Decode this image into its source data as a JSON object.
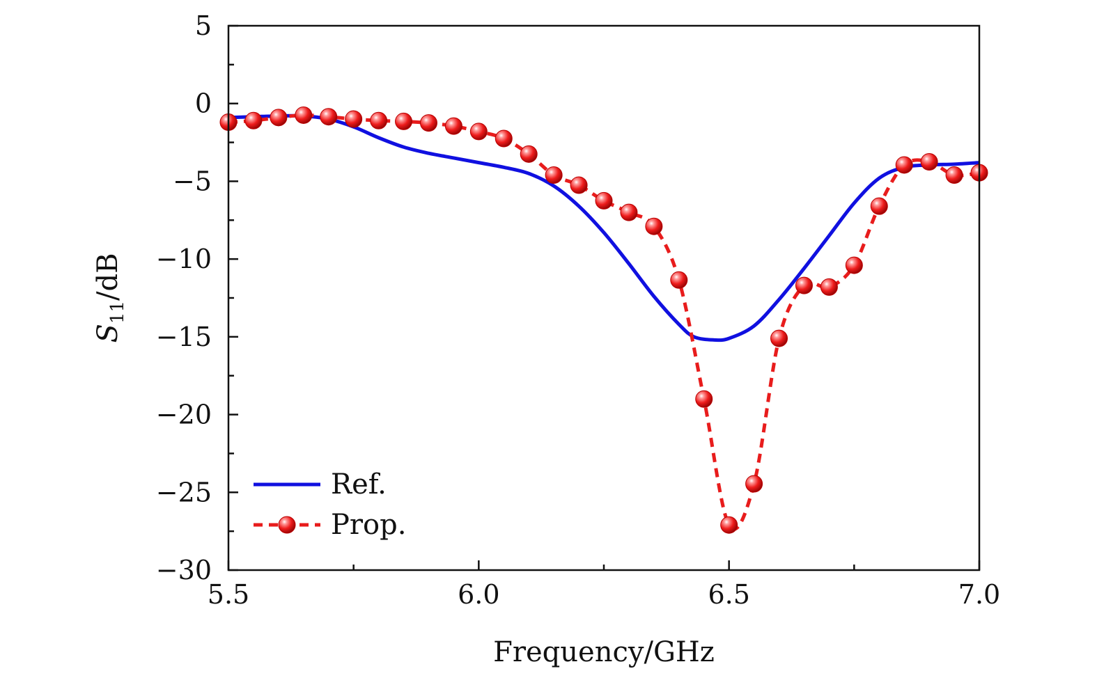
{
  "chart_data": {
    "type": "line",
    "title": "",
    "xlabel": "Frequency/GHz",
    "ylabel_main": "S",
    "ylabel_sub": "11",
    "ylabel_unit": "/dB",
    "xlim": [
      5.5,
      7.0
    ],
    "ylim": [
      -30,
      5
    ],
    "xticks": [
      5.5,
      6.0,
      6.5,
      7.0
    ],
    "xtick_labels": [
      "5.5",
      "6.0",
      "6.5",
      "7.0"
    ],
    "yticks": [
      5,
      0,
      -5,
      -10,
      -15,
      -20,
      -25,
      -30
    ],
    "ytick_labels": [
      "5",
      "0",
      "−5",
      "−10",
      "−15",
      "−20",
      "−25",
      "−30"
    ],
    "grid": false,
    "legend_position": "bottom-left",
    "series": [
      {
        "name": "Ref.",
        "color": "#1010e0",
        "style": "solid",
        "marker": "none",
        "x": [
          5.5,
          5.55,
          5.6,
          5.65,
          5.7,
          5.75,
          5.8,
          5.85,
          5.9,
          5.95,
          6.0,
          6.05,
          6.1,
          6.15,
          6.2,
          6.25,
          6.3,
          6.35,
          6.4,
          6.43,
          6.47,
          6.5,
          6.55,
          6.6,
          6.65,
          6.7,
          6.75,
          6.8,
          6.85,
          6.9,
          6.95,
          7.0
        ],
        "values": [
          -0.9,
          -0.85,
          -0.8,
          -0.8,
          -1.0,
          -1.5,
          -2.2,
          -2.8,
          -3.2,
          -3.5,
          -3.8,
          -4.1,
          -4.5,
          -5.3,
          -6.6,
          -8.3,
          -10.3,
          -12.4,
          -14.2,
          -15.0,
          -15.2,
          -15.1,
          -14.3,
          -12.6,
          -10.6,
          -8.5,
          -6.4,
          -4.8,
          -4.1,
          -3.95,
          -3.9,
          -3.8
        ]
      },
      {
        "name": "Prop.",
        "color": "#e81c1c",
        "style": "dashed",
        "marker": "sphere",
        "x": [
          5.5,
          5.55,
          5.6,
          5.65,
          5.7,
          5.75,
          5.8,
          5.85,
          5.9,
          5.95,
          6.0,
          6.05,
          6.1,
          6.15,
          6.2,
          6.25,
          6.3,
          6.35,
          6.4,
          6.45,
          6.5,
          6.55,
          6.6,
          6.65,
          6.7,
          6.75,
          6.8,
          6.85,
          6.9,
          6.95,
          7.0
        ],
        "values": [
          -1.2,
          -1.1,
          -0.9,
          -0.75,
          -0.85,
          -1.0,
          -1.1,
          -1.15,
          -1.25,
          -1.45,
          -1.8,
          -2.25,
          -3.25,
          -4.6,
          -5.25,
          -6.25,
          -7.0,
          -7.9,
          -11.35,
          -19.0,
          -27.1,
          -24.45,
          -15.1,
          -11.7,
          -11.8,
          -10.4,
          -6.6,
          -3.95,
          -3.75,
          -4.6,
          -4.45
        ]
      }
    ]
  }
}
